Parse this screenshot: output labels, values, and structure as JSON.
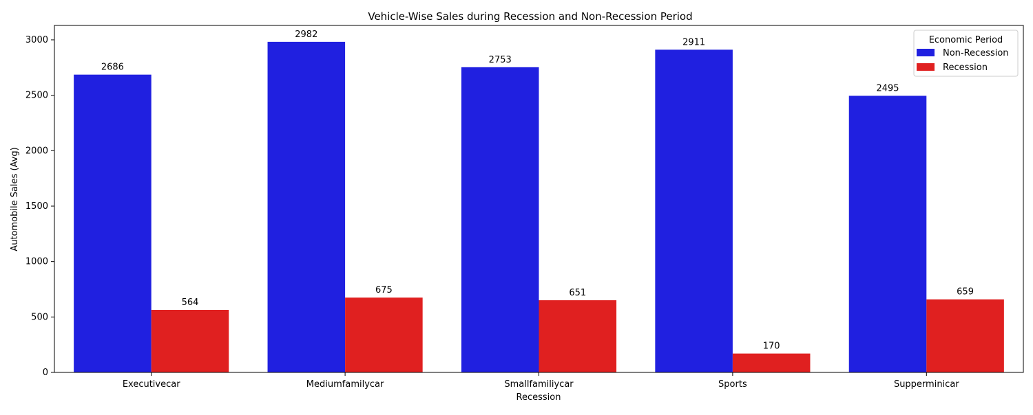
{
  "chart_data": {
    "type": "bar",
    "title": "Vehicle-Wise Sales during Recession and Non-Recession Period",
    "xlabel": "Recession",
    "ylabel": "Automobile Sales (Avg)",
    "categories": [
      "Executivecar",
      "Mediumfamilycar",
      "Smallfamiliycar",
      "Sports",
      "Supperminicar"
    ],
    "series": [
      {
        "name": "Non-Recession",
        "color": "#2020e0",
        "values": [
          2686,
          2982,
          2753,
          2911,
          2495
        ]
      },
      {
        "name": "Recession",
        "color": "#e02020",
        "values": [
          564,
          675,
          651,
          170,
          659
        ]
      }
    ],
    "ylim": [
      0,
      3130
    ],
    "yticks": [
      0,
      500,
      1000,
      1500,
      2000,
      2500,
      3000
    ],
    "grid": false,
    "legend": {
      "title": "Economic Period",
      "placement": "top-right"
    }
  }
}
